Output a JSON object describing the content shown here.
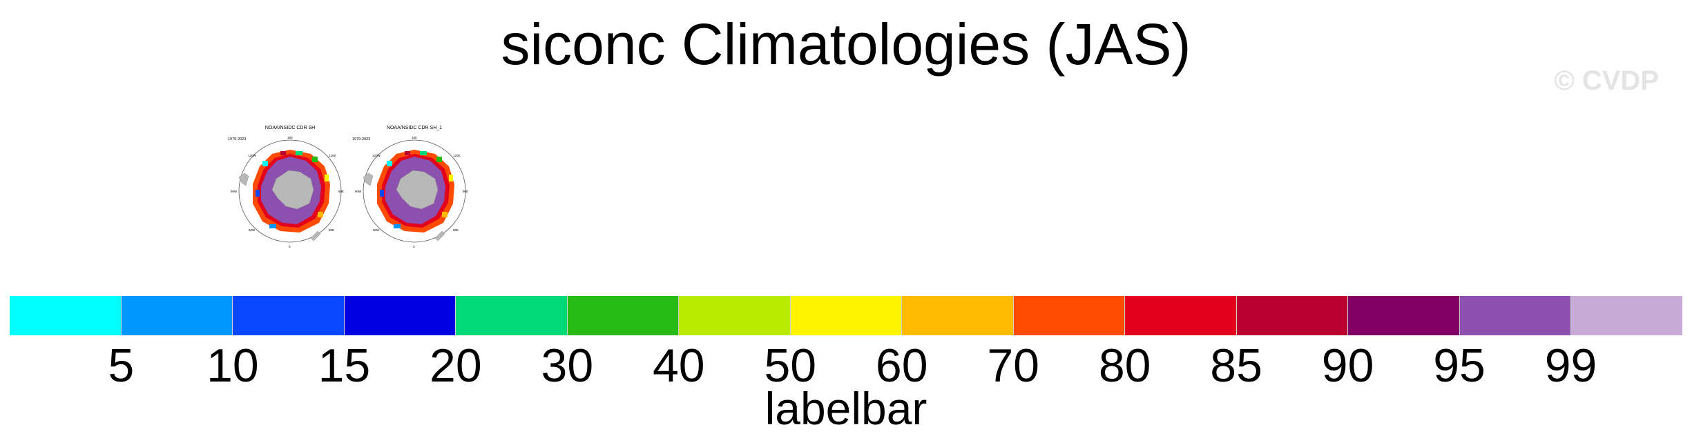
{
  "title": "siconc Climatologies (JAS)",
  "watermark": "© CVDP",
  "panels": [
    {
      "title": "NOAA/NSIDC CDR SH",
      "years": "1979-2023"
    },
    {
      "title": "NOAA/NSIDC CDR SH_1",
      "years": "1979-2023"
    }
  ],
  "colorbar": {
    "label": "labelbar",
    "ticks": [
      "5",
      "10",
      "15",
      "20",
      "30",
      "40",
      "50",
      "60",
      "70",
      "80",
      "85",
      "90",
      "95",
      "99"
    ],
    "colors": [
      "#00ffff",
      "#0096ff",
      "#0a48ff",
      "#0000e1",
      "#00d978",
      "#25bb12",
      "#b9eb00",
      "#fff500",
      "#ffbb00",
      "#ff4b00",
      "#e3001c",
      "#b9002f",
      "#820064",
      "#8c50af",
      "#c8aad7"
    ]
  }
}
